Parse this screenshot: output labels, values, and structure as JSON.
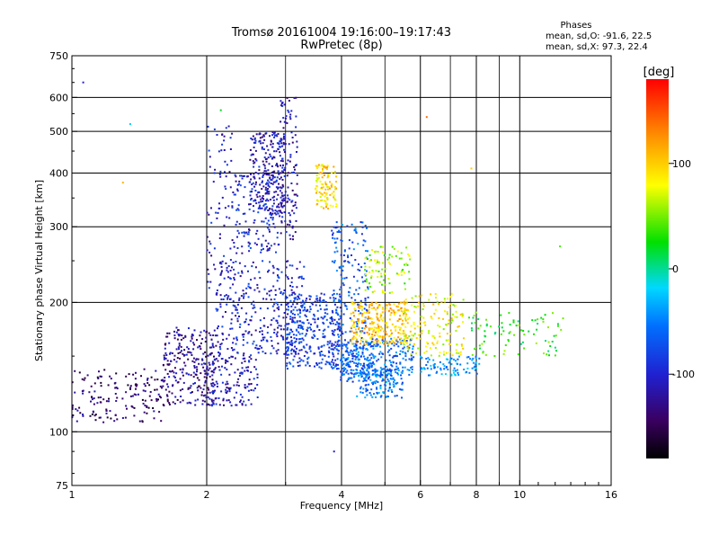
{
  "chart_data": {
    "type": "scatter",
    "title": "Tromsø 20161004 19:16:00–19:17:43",
    "subtitle": "RwPretec (8p)",
    "xlabel": "Frequency [MHz]",
    "ylabel": "Stationary phase Virtual Height [km]",
    "x_scale": "log",
    "y_scale": "log",
    "xlim": [
      1,
      16
    ],
    "ylim": [
      75,
      750
    ],
    "x_ticks": [
      1,
      2,
      4,
      6,
      8,
      10,
      16
    ],
    "x_tick_labels": [
      "1",
      "2",
      "4",
      "6",
      "8",
      "10",
      "16"
    ],
    "x_minor_ticks": [
      3,
      5,
      7,
      9,
      11,
      12,
      13,
      14,
      15
    ],
    "y_ticks": [
      75,
      100,
      200,
      300,
      400,
      500,
      600,
      750
    ],
    "y_tick_labels": [
      "75",
      "100",
      "200",
      "300",
      "400",
      "500",
      "600",
      "750"
    ],
    "grid": true,
    "stats": {
      "heading": "Phases",
      "line_o": "mean, sd,O: -91.6, 22.5",
      "line_x": "mean, sd,X:  97.3, 22.4"
    },
    "colorbar": {
      "label": "[deg]",
      "range": [
        -180,
        180
      ],
      "ticks": [
        100,
        0,
        -100
      ],
      "tick_labels": [
        "100",
        "0",
        "-100"
      ],
      "colormap": "rainbow (black → violet → blue → cyan → green → yellow → orange → red)"
    },
    "clusters": [
      {
        "f": [
          1.0,
          1.6
        ],
        "h": [
          105,
          140
        ],
        "phase": -140,
        "n": 160
      },
      {
        "f": [
          1.6,
          2.1
        ],
        "h": [
          115,
          175
        ],
        "phase": -125,
        "n": 260
      },
      {
        "f": [
          2.0,
          2.6
        ],
        "h": [
          115,
          150
        ],
        "phase": -110,
        "n": 140
      },
      {
        "f": [
          2.0,
          2.3
        ],
        "h": [
          200,
          520
        ],
        "phase": -105,
        "n": 90
      },
      {
        "f": [
          2.3,
          2.9
        ],
        "h": [
          260,
          400
        ],
        "phase": -100,
        "n": 160
      },
      {
        "f": [
          2.5,
          3.0
        ],
        "h": [
          320,
          500
        ],
        "phase": -110,
        "n": 220
      },
      {
        "f": [
          2.9,
          3.2
        ],
        "h": [
          280,
          600
        ],
        "phase": -115,
        "n": 120
      },
      {
        "f": [
          2.1,
          3.3
        ],
        "h": [
          150,
          250
        ],
        "phase": -100,
        "n": 320
      },
      {
        "f": [
          3.0,
          4.0
        ],
        "h": [
          140,
          210
        ],
        "phase": -85,
        "n": 340
      },
      {
        "f": [
          3.5,
          3.9
        ],
        "h": [
          330,
          420
        ],
        "phase": 95,
        "n": 110
      },
      {
        "f": [
          3.8,
          4.6
        ],
        "h": [
          130,
          310
        ],
        "phase": -70,
        "n": 230
      },
      {
        "f": [
          4.0,
          5.8
        ],
        "h": [
          135,
          165
        ],
        "phase": -60,
        "n": 280
      },
      {
        "f": [
          4.3,
          5.5
        ],
        "h": [
          120,
          140
        ],
        "phase": -55,
        "n": 140
      },
      {
        "f": [
          4.2,
          5.6
        ],
        "h": [
          160,
          200
        ],
        "phase": 105,
        "n": 260
      },
      {
        "f": [
          4.5,
          5.7
        ],
        "h": [
          210,
          270
        ],
        "phase": 60,
        "n": 90
      },
      {
        "f": [
          5.5,
          7.5
        ],
        "h": [
          150,
          210
        ],
        "phase": 80,
        "n": 160
      },
      {
        "f": [
          6.0,
          8.2
        ],
        "h": [
          135,
          150
        ],
        "phase": -45,
        "n": 90
      },
      {
        "f": [
          7.5,
          12.5
        ],
        "h": [
          150,
          190
        ],
        "phase": 30,
        "n": 90
      }
    ],
    "outliers": [
      {
        "f": 1.06,
        "h": 650,
        "phase": -100
      },
      {
        "f": 1.35,
        "h": 520,
        "phase": -20
      },
      {
        "f": 1.3,
        "h": 380,
        "phase": 110
      },
      {
        "f": 6.2,
        "h": 540,
        "phase": 140
      },
      {
        "f": 3.85,
        "h": 90,
        "phase": -100
      },
      {
        "f": 7.8,
        "h": 410,
        "phase": 100
      },
      {
        "f": 12.3,
        "h": 270,
        "phase": 40
      },
      {
        "f": 2.15,
        "h": 560,
        "phase": 20
      }
    ]
  }
}
